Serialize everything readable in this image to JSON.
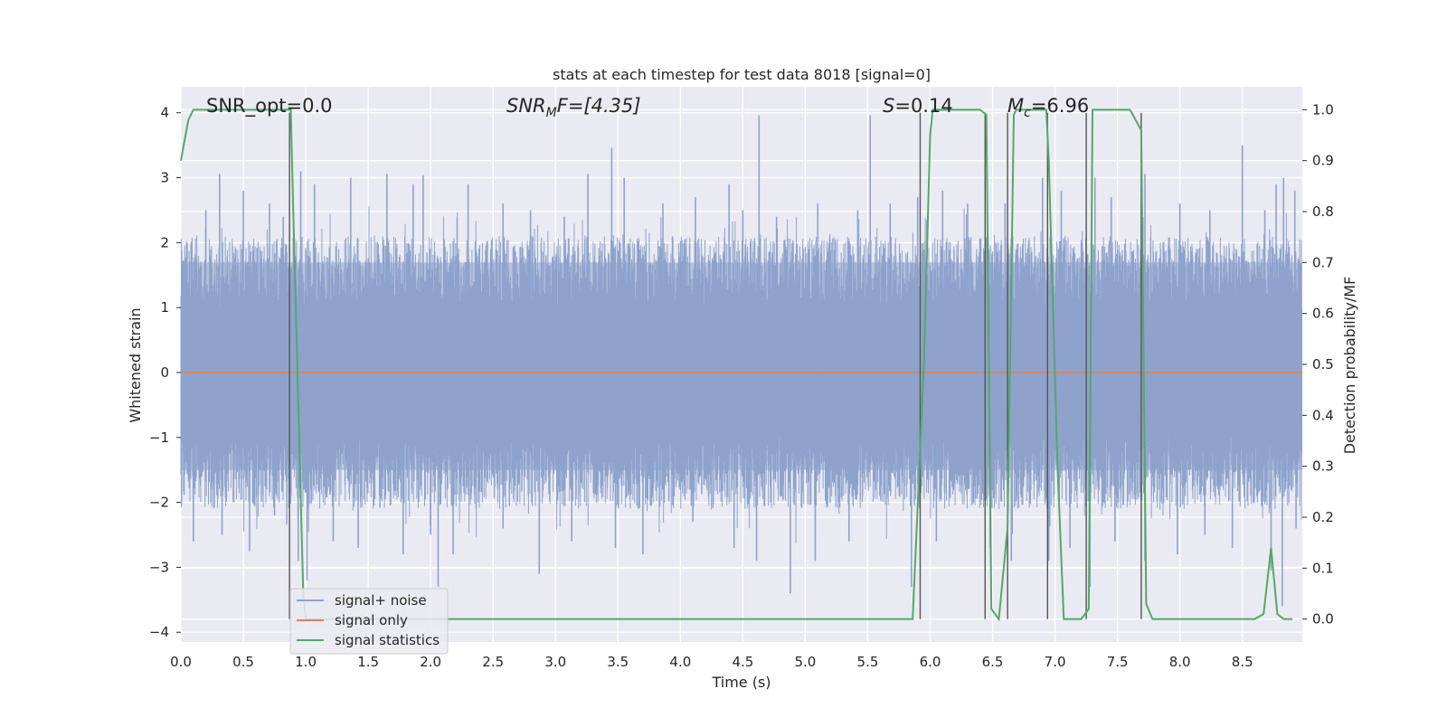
{
  "chart_data": {
    "type": "line",
    "title": "stats at each timestep for test data 8018 [signal=0]",
    "xlabel": "Time (s)",
    "ylabel": "Whitened strain",
    "ylabel_right": "Detection probability/MF",
    "xlim": [
      0.0,
      8.98
    ],
    "ylim": [
      -4.15,
      4.4
    ],
    "ylim_right": [
      -0.045,
      1.045
    ],
    "x_ticks": [
      "0.0",
      "0.5",
      "1.0",
      "1.5",
      "2.0",
      "2.5",
      "3.0",
      "3.5",
      "4.0",
      "4.5",
      "5.0",
      "5.5",
      "6.0",
      "6.5",
      "7.0",
      "7.5",
      "8.0",
      "8.5"
    ],
    "y_ticks": [
      "4",
      "3",
      "2",
      "1",
      "0",
      "−1",
      "−2",
      "−3",
      "−4"
    ],
    "y_ticks_right": [
      "1.0",
      "0.9",
      "0.8",
      "0.7",
      "0.6",
      "0.5",
      "0.4",
      "0.3",
      "0.2",
      "0.1",
      "0.0"
    ],
    "grid": true,
    "legend_position": "lower-left",
    "annotations": {
      "snr_opt": "SNR_opt=0.0",
      "snr_mf_main": "SNR",
      "snr_mf_sub": "M",
      "snr_mf_rest": "F=[4.35]",
      "s_var": "S",
      "s_val": "=0.14",
      "mc_var": "M",
      "mc_sub": "c",
      "mc_val": "=6.96"
    },
    "series": [
      {
        "name": "signal+ noise",
        "color": "#8ea3cc",
        "description_band": {
          "envelope_typical": [
            -1.5,
            1.7
          ]
        },
        "peaks": [
          [
            0.05,
            2.0
          ],
          [
            0.2,
            2.5
          ],
          [
            0.31,
            3.06
          ],
          [
            0.5,
            2.8
          ],
          [
            0.71,
            2.6
          ],
          [
            0.82,
            2.4
          ],
          [
            0.96,
            3.1
          ],
          [
            1.07,
            2.9
          ],
          [
            1.36,
            3.0
          ],
          [
            1.65,
            3.06
          ],
          [
            1.86,
            2.9
          ],
          [
            1.94,
            3.04
          ],
          [
            2.3,
            2.9
          ],
          [
            2.58,
            2.6
          ],
          [
            2.8,
            2.5
          ],
          [
            3.07,
            2.4
          ],
          [
            3.26,
            3.06
          ],
          [
            3.45,
            3.46
          ],
          [
            3.55,
            3.0
          ],
          [
            3.86,
            2.6
          ],
          [
            4.12,
            2.7
          ],
          [
            4.39,
            2.9
          ],
          [
            4.5,
            2.5
          ],
          [
            4.63,
            3.96
          ],
          [
            4.77,
            2.4
          ],
          [
            5.1,
            2.6
          ],
          [
            5.42,
            2.5
          ],
          [
            5.52,
            3.96
          ],
          [
            5.68,
            2.6
          ],
          [
            5.9,
            2.7
          ],
          [
            6.1,
            2.8
          ],
          [
            6.3,
            2.6
          ],
          [
            6.6,
            2.6
          ],
          [
            6.9,
            3.0
          ],
          [
            7.05,
            2.8
          ],
          [
            7.32,
            3.0
          ],
          [
            7.45,
            2.7
          ],
          [
            7.72,
            3.06
          ],
          [
            8.0,
            2.6
          ],
          [
            8.24,
            2.5
          ],
          [
            8.5,
            3.5
          ],
          [
            8.68,
            2.5
          ],
          [
            8.77,
            2.9
          ],
          [
            8.83,
            3.0
          ],
          [
            8.92,
            2.8
          ]
        ],
        "troughs": [
          [
            0.1,
            -2.6
          ],
          [
            0.33,
            -2.5
          ],
          [
            0.55,
            -2.75
          ],
          [
            0.75,
            -2.2
          ],
          [
            0.94,
            -2.9
          ],
          [
            1.01,
            -3.2
          ],
          [
            1.22,
            -2.6
          ],
          [
            1.42,
            -2.7
          ],
          [
            1.78,
            -2.8
          ],
          [
            2.0,
            -2.5
          ],
          [
            2.06,
            -3.3
          ],
          [
            2.18,
            -2.8
          ],
          [
            2.58,
            -2.4
          ],
          [
            2.87,
            -3.1
          ],
          [
            3.13,
            -2.6
          ],
          [
            3.48,
            -2.7
          ],
          [
            3.7,
            -2.8
          ],
          [
            4.1,
            -2.3
          ],
          [
            4.43,
            -2.7
          ],
          [
            4.61,
            -2.9
          ],
          [
            4.88,
            -3.4
          ],
          [
            5.08,
            -2.9
          ],
          [
            5.35,
            -2.6
          ],
          [
            5.85,
            -3.3
          ],
          [
            6.05,
            -2.6
          ],
          [
            6.48,
            -2.7
          ],
          [
            6.65,
            -2.9
          ],
          [
            6.95,
            -2.9
          ],
          [
            7.12,
            -2.7
          ],
          [
            7.28,
            -3.3
          ],
          [
            7.48,
            -2.6
          ],
          [
            7.72,
            -2.9
          ],
          [
            7.98,
            -2.8
          ],
          [
            8.2,
            -2.5
          ],
          [
            8.42,
            -2.7
          ],
          [
            8.73,
            -3.05
          ],
          [
            8.82,
            -3.6
          ],
          [
            8.93,
            -2.4
          ]
        ]
      },
      {
        "name": "signal only",
        "color": "#dd8452",
        "x": [
          0.0,
          8.98
        ],
        "y": [
          0.0,
          0.0
        ]
      },
      {
        "name": "signal statistics",
        "color": "#55a868",
        "axis": "right",
        "x": [
          0.0,
          0.06,
          0.1,
          0.15,
          0.5,
          0.86,
          0.88,
          0.9,
          0.98,
          1.0,
          1.02,
          2.0,
          5.86,
          5.95,
          6.0,
          6.02,
          6.4,
          6.45,
          6.49,
          6.55,
          6.62,
          6.67,
          6.69,
          6.93,
          6.95,
          7.02,
          7.07,
          7.21,
          7.27,
          7.3,
          7.6,
          7.69,
          7.73,
          7.78,
          8.6,
          8.67,
          8.73,
          8.78,
          8.83,
          8.9
        ],
        "y": [
          0.9,
          0.98,
          1.0,
          1.0,
          1.0,
          1.0,
          1.0,
          0.8,
          0.05,
          0.0,
          0.0,
          0.0,
          0.0,
          0.5,
          0.95,
          1.0,
          1.0,
          0.99,
          0.02,
          0.0,
          0.18,
          0.99,
          1.0,
          1.0,
          0.9,
          0.3,
          0.0,
          0.0,
          0.02,
          1.0,
          1.0,
          0.96,
          0.03,
          0.0,
          0.0,
          0.01,
          0.14,
          0.01,
          0.0,
          0.0
        ]
      }
    ],
    "vertical_lines_x": [
      0.87,
      5.92,
      6.44,
      6.62,
      6.94,
      7.25,
      7.69
    ]
  }
}
